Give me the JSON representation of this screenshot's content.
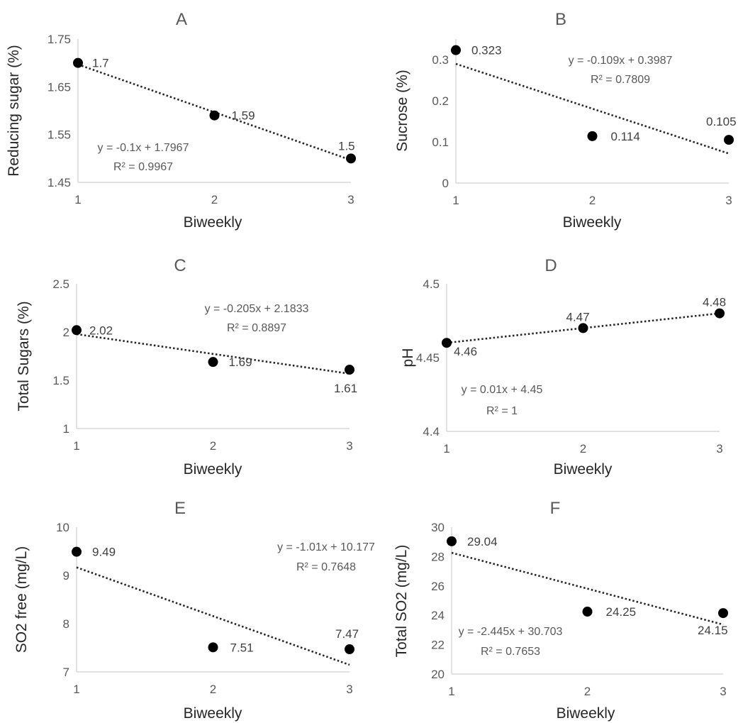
{
  "chart_data": [
    {
      "type": "scatter",
      "panel": "A",
      "xlabel": "Biweekly",
      "ylabel": "Reducing sugar (%)",
      "x": [
        1,
        2,
        3
      ],
      "y": [
        1.7,
        1.59,
        1.5
      ],
      "data_labels": [
        "1.7",
        "1.59",
        "1.5"
      ],
      "xticks": [
        "1",
        "2",
        "3"
      ],
      "yticks": [
        "1.45",
        "1.55",
        "1.65",
        "1.75"
      ],
      "ylim": [
        1.45,
        1.75
      ],
      "trendline": {
        "type": "linear",
        "slope": -0.1,
        "intercept": 1.7967
      },
      "equation": "y = -0.1x + 1.7967",
      "r2": "R² = 0.9967",
      "grid": false
    },
    {
      "type": "scatter",
      "panel": "B",
      "xlabel": "Biweekly",
      "ylabel": "Sucrose (%)",
      "x": [
        1,
        2,
        3
      ],
      "y": [
        0.323,
        0.114,
        0.105
      ],
      "data_labels": [
        "0.323",
        "0.114",
        "0.105"
      ],
      "xticks": [
        "1",
        "2",
        "3"
      ],
      "yticks": [
        "0",
        "0.1",
        "0.2",
        "0.3"
      ],
      "ylim": [
        0,
        0.35
      ],
      "trendline": {
        "type": "linear",
        "slope": -0.109,
        "intercept": 0.3987
      },
      "equation": "y = -0.109x + 0.3987",
      "r2": "R² = 0.7809",
      "grid": false
    },
    {
      "type": "scatter",
      "panel": "C",
      "xlabel": "Biweekly",
      "ylabel": "Total Sugars (%)",
      "x": [
        1,
        2,
        3
      ],
      "y": [
        2.02,
        1.69,
        1.61
      ],
      "data_labels": [
        "2.02",
        "1.69",
        "1.61"
      ],
      "xticks": [
        "1",
        "2",
        "3"
      ],
      "yticks": [
        "1",
        "1.5",
        "2",
        "2.5"
      ],
      "ylim": [
        1,
        2.5
      ],
      "trendline": {
        "type": "linear",
        "slope": -0.205,
        "intercept": 2.1833
      },
      "equation": "y = -0.205x + 2.1833",
      "r2": "R² = 0.8897",
      "grid": false
    },
    {
      "type": "scatter",
      "panel": "D",
      "xlabel": "Biweekly",
      "ylabel": "pH",
      "x": [
        1,
        2,
        3
      ],
      "y": [
        4.46,
        4.47,
        4.48
      ],
      "data_labels": [
        "4.46",
        "4.47",
        "4.48"
      ],
      "xticks": [
        "1",
        "2",
        "3"
      ],
      "yticks": [
        "4.4",
        "4.45",
        "4.5"
      ],
      "ylim": [
        4.4,
        4.5
      ],
      "trendline": {
        "type": "linear",
        "slope": 0.01,
        "intercept": 4.45
      },
      "equation": "y = 0.01x + 4.45",
      "r2": "R² = 1",
      "grid": false
    },
    {
      "type": "scatter",
      "panel": "E",
      "xlabel": "Biweekly",
      "ylabel": "SO2 free (mg/L)",
      "x": [
        1,
        2,
        3
      ],
      "y": [
        9.49,
        7.51,
        7.47
      ],
      "data_labels": [
        "9.49",
        "7.51",
        "7.47"
      ],
      "xticks": [
        "1",
        "2",
        "3"
      ],
      "yticks": [
        "7",
        "8",
        "9",
        "10"
      ],
      "ylim": [
        7,
        10
      ],
      "trendline": {
        "type": "linear",
        "slope": -1.01,
        "intercept": 10.177
      },
      "equation": "y = -1.01x + 10.177",
      "r2": "R² = 0.7648",
      "grid": false
    },
    {
      "type": "scatter",
      "panel": "F",
      "xlabel": "Biweekly",
      "ylabel": "Total SO2 (mg/L)",
      "x": [
        1,
        2,
        3
      ],
      "y": [
        29.04,
        24.25,
        24.15
      ],
      "data_labels": [
        "29.04",
        "24.25",
        "24.15"
      ],
      "xticks": [
        "1",
        "2",
        "3"
      ],
      "yticks": [
        "20",
        "22",
        "24",
        "26",
        "28",
        "30"
      ],
      "ylim": [
        20,
        30
      ],
      "trendline": {
        "type": "linear",
        "slope": -2.445,
        "intercept": 30.703
      },
      "equation": "y = -2.445x + 30.703",
      "r2": "R² = 0.7653",
      "grid": false
    }
  ]
}
